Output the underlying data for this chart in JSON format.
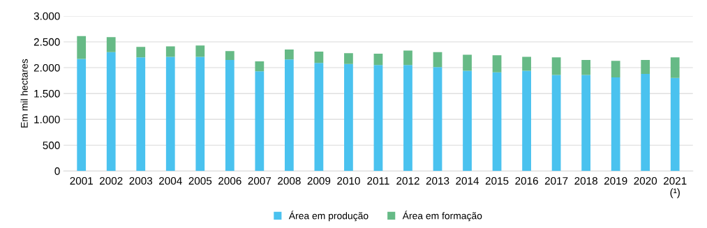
{
  "chart_data": {
    "type": "bar",
    "stacked": true,
    "ylabel": "Em mil hectares",
    "categories": [
      "2001",
      "2002",
      "2003",
      "2004",
      "2005",
      "2006",
      "2007",
      "2008",
      "2009",
      "2010",
      "2011",
      "2012",
      "2013",
      "2014",
      "2015",
      "2016",
      "2017",
      "2018",
      "2019",
      "2020",
      "2021\n(¹)"
    ],
    "series": [
      {
        "name": "Área em produção",
        "color": "#4ac2ef",
        "values": [
          2170,
          2300,
          2200,
          2210,
          2210,
          2150,
          1930,
          2160,
          2090,
          2070,
          2050,
          2050,
          2010,
          1940,
          1910,
          1940,
          1860,
          1860,
          1810,
          1880,
          1800
        ]
      },
      {
        "name": "Área em formação",
        "color": "#66ba86",
        "values": [
          440,
          290,
          200,
          200,
          220,
          170,
          190,
          190,
          220,
          210,
          220,
          280,
          290,
          310,
          330,
          270,
          340,
          290,
          320,
          270,
          400
        ]
      }
    ],
    "ylim": [
      0,
      3000
    ],
    "yticks": [
      {
        "value": 0,
        "label": "0"
      },
      {
        "value": 500,
        "label": "500"
      },
      {
        "value": 1000,
        "label": "1.000"
      },
      {
        "value": 1500,
        "label": "1.500"
      },
      {
        "value": 2000,
        "label": "2.000"
      },
      {
        "value": 2500,
        "label": "2.500"
      },
      {
        "value": 3000,
        "label": "3.000"
      }
    ],
    "grid": "y",
    "legend": "bottom"
  }
}
